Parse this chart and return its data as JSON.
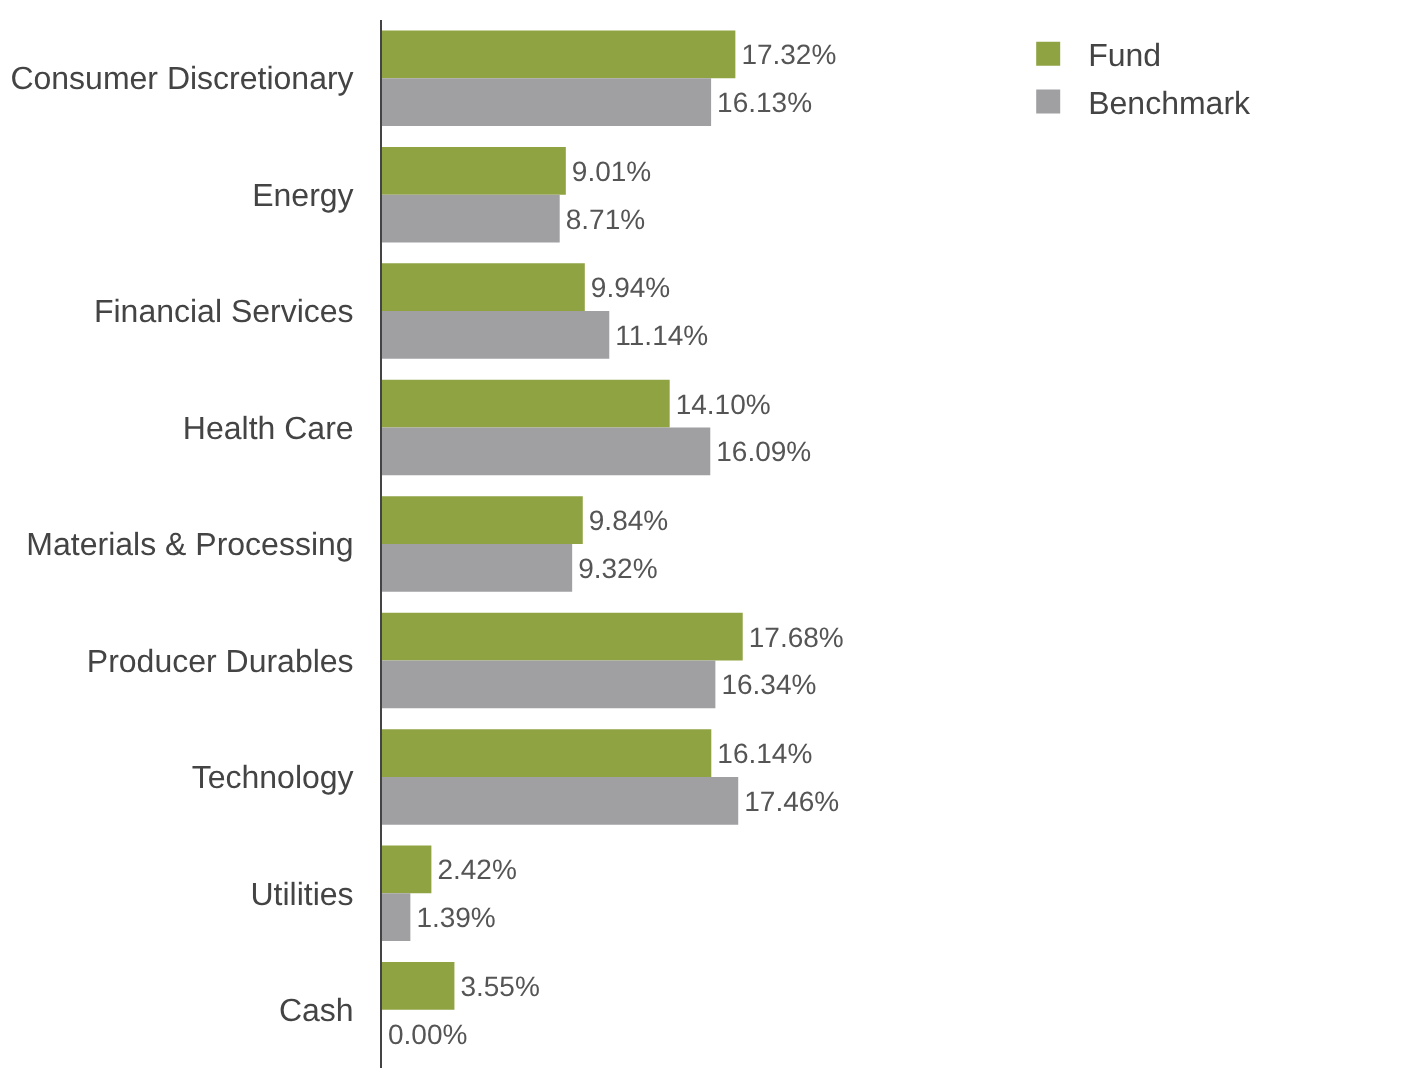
{
  "chart_data": {
    "type": "bar",
    "orientation": "horizontal",
    "legend": "top right",
    "categories": [
      "Consumer Discretionary",
      "Energy",
      "Financial Services",
      "Health Care",
      "Materials & Processing",
      "Producer Durables",
      "Technology",
      "Utilities",
      "Cash"
    ],
    "series": [
      {
        "name": "Fund",
        "color": "#8fa343",
        "values": [
          17.32,
          9.01,
          9.94,
          14.1,
          9.84,
          17.68,
          16.14,
          2.42,
          3.55
        ],
        "value_labels": [
          "17.32%",
          "9.01%",
          "9.94%",
          "14.10%",
          "9.84%",
          "17.68%",
          "16.14%",
          "2.42%",
          "3.55%"
        ]
      },
      {
        "name": "Benchmark",
        "color": "#a0a0a3",
        "values": [
          16.13,
          8.71,
          11.14,
          16.09,
          9.32,
          16.34,
          17.46,
          1.39,
          0.0
        ],
        "value_labels": [
          "16.13%",
          "8.71%",
          "11.14%",
          "16.09%",
          "9.32%",
          "16.34%",
          "17.46%",
          "1.39%",
          "0.00%"
        ]
      }
    ]
  }
}
